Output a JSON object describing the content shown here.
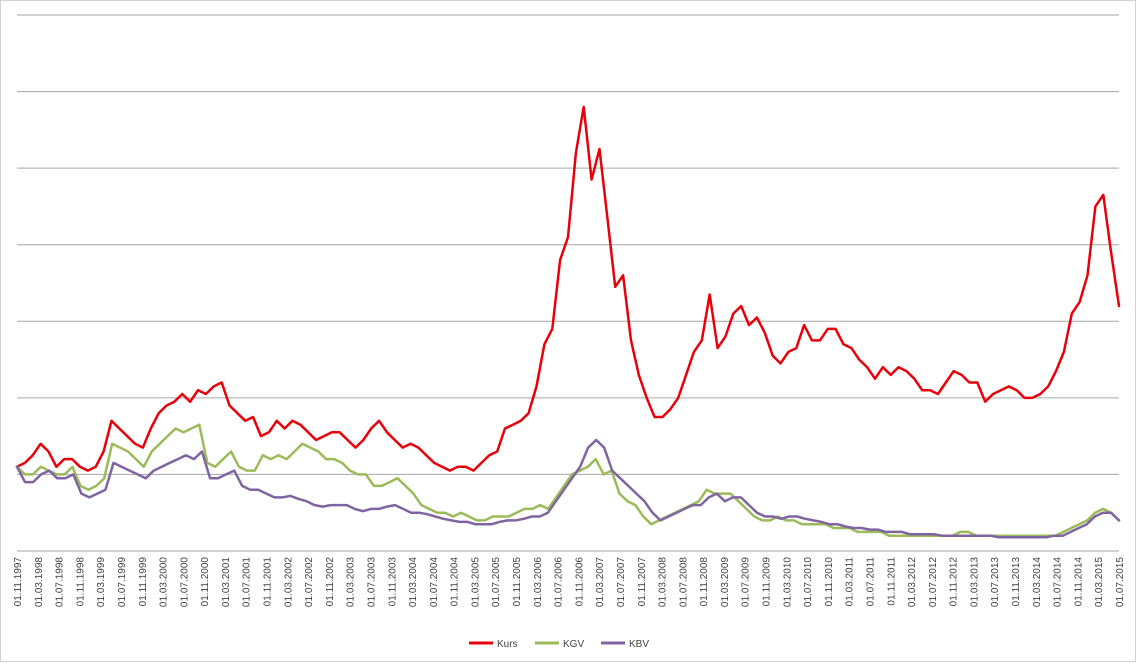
{
  "chart_data": {
    "type": "line",
    "title": "",
    "xlabel": "",
    "ylabel": "",
    "y_axis_labels_visible": false,
    "grid": "horizontal",
    "gridline_count": 7,
    "legend_position": "bottom-center",
    "x_tick_labels": [
      "01.11.1997",
      "01.03.1998",
      "01.07.1998",
      "01.11.1998",
      "01.03.1999",
      "01.07.1999",
      "01.11.1999",
      "01.03.2000",
      "01.07.2000",
      "01.11.2000",
      "01.03.2001",
      "01.07.2001",
      "01.11.2001",
      "01.03.2002",
      "01.07.2002",
      "01.11.2002",
      "01.03.2003",
      "01.07.2003",
      "01.11.2003",
      "01.03.2004",
      "01.07.2004",
      "01.11.2004",
      "01.03.2005",
      "01.07.2005",
      "01.11.2005",
      "01.03.2006",
      "01.07.2006",
      "01.11.2006",
      "01.03.2007",
      "01.07.2007",
      "01.11.2007",
      "01.03.2008",
      "01.07.2008",
      "01.11.2008",
      "01.03.2009",
      "01.07.2009",
      "01.11.2009",
      "01.03.2010",
      "01.07.2010",
      "01.11.2010",
      "01.03.2011",
      "01.07.2011",
      "01.11.2011",
      "01.03.2012",
      "01.07.2012",
      "01.11.2012",
      "01.03.2013",
      "01.07.2013",
      "01.11.2013",
      "01.03.2014",
      "01.07.2014",
      "01.11.2014",
      "01.03.2015",
      "01.07.2015"
    ],
    "ylim": [
      0,
      7
    ],
    "series": [
      {
        "name": "Kurs",
        "color": "#e8000b",
        "values": [
          1.1,
          1.15,
          1.25,
          1.4,
          1.3,
          1.1,
          1.2,
          1.2,
          1.1,
          1.05,
          1.1,
          1.3,
          1.7,
          1.6,
          1.5,
          1.4,
          1.35,
          1.6,
          1.8,
          1.9,
          1.95,
          2.05,
          1.95,
          2.1,
          2.05,
          2.15,
          2.2,
          1.9,
          1.8,
          1.7,
          1.75,
          1.5,
          1.55,
          1.7,
          1.6,
          1.7,
          1.65,
          1.55,
          1.45,
          1.5,
          1.55,
          1.55,
          1.45,
          1.35,
          1.45,
          1.6,
          1.7,
          1.55,
          1.45,
          1.35,
          1.4,
          1.35,
          1.25,
          1.15,
          1.1,
          1.05,
          1.1,
          1.1,
          1.05,
          1.15,
          1.25,
          1.3,
          1.6,
          1.65,
          1.7,
          1.8,
          2.15,
          2.7,
          2.9,
          3.8,
          4.1,
          5.2,
          5.8,
          4.85,
          5.25,
          4.35,
          3.45,
          3.6,
          2.75,
          2.3,
          2.0,
          1.75,
          1.75,
          1.85,
          2.0,
          2.3,
          2.6,
          2.75,
          3.35,
          2.65,
          2.8,
          3.1,
          3.2,
          2.95,
          3.05,
          2.85,
          2.55,
          2.45,
          2.6,
          2.65,
          2.95,
          2.75,
          2.75,
          2.9,
          2.9,
          2.7,
          2.65,
          2.5,
          2.4,
          2.25,
          2.4,
          2.3,
          2.4,
          2.35,
          2.25,
          2.1,
          2.1,
          2.05,
          2.2,
          2.35,
          2.3,
          2.2,
          2.2,
          1.95,
          2.05,
          2.1,
          2.15,
          2.1,
          2.0,
          2.0,
          2.05,
          2.15,
          2.35,
          2.6,
          3.1,
          3.25,
          3.6,
          4.5,
          4.65,
          3.9,
          3.2
        ]
      },
      {
        "name": "KGV",
        "color": "#9bbb59",
        "values": [
          1.1,
          1.0,
          1.0,
          1.1,
          1.05,
          1.0,
          1.0,
          1.1,
          0.85,
          0.8,
          0.85,
          0.95,
          1.4,
          1.35,
          1.3,
          1.2,
          1.1,
          1.3,
          1.4,
          1.5,
          1.6,
          1.55,
          1.6,
          1.65,
          1.15,
          1.1,
          1.2,
          1.3,
          1.1,
          1.05,
          1.05,
          1.25,
          1.2,
          1.25,
          1.2,
          1.3,
          1.4,
          1.35,
          1.3,
          1.2,
          1.2,
          1.15,
          1.05,
          1.0,
          1.0,
          0.85,
          0.85,
          0.9,
          0.95,
          0.85,
          0.75,
          0.6,
          0.55,
          0.5,
          0.5,
          0.45,
          0.5,
          0.45,
          0.4,
          0.4,
          0.45,
          0.45,
          0.45,
          0.5,
          0.55,
          0.55,
          0.6,
          0.55,
          0.7,
          0.85,
          1.0,
          1.05,
          1.1,
          1.2,
          1.0,
          1.05,
          0.75,
          0.65,
          0.6,
          0.45,
          0.35,
          0.4,
          0.45,
          0.5,
          0.55,
          0.6,
          0.65,
          0.8,
          0.75,
          0.75,
          0.75,
          0.65,
          0.55,
          0.45,
          0.4,
          0.4,
          0.45,
          0.4,
          0.4,
          0.35,
          0.35,
          0.35,
          0.35,
          0.3,
          0.3,
          0.3,
          0.25,
          0.25,
          0.25,
          0.25,
          0.2,
          0.2,
          0.2,
          0.2,
          0.2,
          0.2,
          0.2,
          0.2,
          0.2,
          0.25,
          0.25,
          0.2,
          0.2,
          0.2,
          0.2,
          0.2,
          0.2,
          0.2,
          0.2,
          0.2,
          0.2,
          0.2,
          0.25,
          0.3,
          0.35,
          0.4,
          0.5,
          0.55,
          0.5,
          0.4
        ]
      },
      {
        "name": "KBV",
        "color": "#8064a2",
        "values": [
          1.1,
          0.9,
          0.9,
          1.0,
          1.05,
          0.95,
          0.95,
          1.0,
          0.75,
          0.7,
          0.75,
          0.8,
          1.15,
          1.1,
          1.05,
          1.0,
          0.95,
          1.05,
          1.1,
          1.15,
          1.2,
          1.25,
          1.2,
          1.3,
          0.95,
          0.95,
          1.0,
          1.05,
          0.85,
          0.8,
          0.8,
          0.75,
          0.7,
          0.7,
          0.72,
          0.68,
          0.65,
          0.6,
          0.58,
          0.6,
          0.6,
          0.6,
          0.55,
          0.52,
          0.55,
          0.55,
          0.58,
          0.6,
          0.55,
          0.5,
          0.5,
          0.48,
          0.45,
          0.42,
          0.4,
          0.38,
          0.38,
          0.35,
          0.35,
          0.35,
          0.38,
          0.4,
          0.4,
          0.42,
          0.45,
          0.45,
          0.5,
          0.65,
          0.8,
          0.95,
          1.1,
          1.35,
          1.45,
          1.35,
          1.05,
          0.95,
          0.85,
          0.75,
          0.65,
          0.5,
          0.4,
          0.45,
          0.5,
          0.55,
          0.6,
          0.6,
          0.7,
          0.75,
          0.65,
          0.7,
          0.7,
          0.6,
          0.5,
          0.45,
          0.45,
          0.42,
          0.45,
          0.45,
          0.42,
          0.4,
          0.38,
          0.35,
          0.35,
          0.32,
          0.3,
          0.3,
          0.28,
          0.28,
          0.25,
          0.25,
          0.25,
          0.22,
          0.22,
          0.22,
          0.22,
          0.2,
          0.2,
          0.2,
          0.2,
          0.2,
          0.2,
          0.2,
          0.18,
          0.18,
          0.18,
          0.18,
          0.18,
          0.18,
          0.18,
          0.2,
          0.2,
          0.25,
          0.3,
          0.35,
          0.45,
          0.5,
          0.5,
          0.4
        ]
      }
    ]
  }
}
